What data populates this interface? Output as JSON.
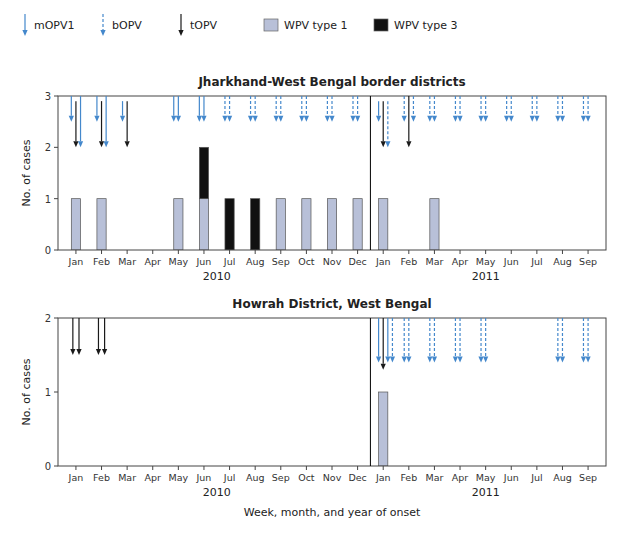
{
  "chart_data": [
    {
      "type": "bar",
      "stacked": true,
      "grid": false,
      "legend": "top",
      "title": "Jharkhand-West Bengal border districts",
      "y_label": "No. of cases",
      "categories": [
        "Jan",
        "Feb",
        "Mar",
        "Apr",
        "May",
        "Jun",
        "Jul",
        "Aug",
        "Sep",
        "Oct",
        "Nov",
        "Dec",
        "Jan",
        "Feb",
        "Mar",
        "Apr",
        "May",
        "Jun",
        "Jul",
        "Aug",
        "Sep"
      ],
      "year_labels": [
        {
          "text": "2010",
          "first": 0,
          "last": 11
        },
        {
          "text": "2011",
          "first": 12,
          "last": 20
        }
      ],
      "series": [
        {
          "name": "WPV type 1",
          "color": "#b8c0d8",
          "values": [
            1,
            1,
            0,
            0,
            1,
            1,
            0,
            0,
            1,
            1,
            1,
            1,
            1,
            0,
            1,
            0,
            0,
            0,
            0,
            0,
            0
          ]
        },
        {
          "name": "WPV type 3",
          "color": "#111111",
          "values": [
            0,
            0,
            0,
            0,
            0,
            1,
            1,
            1,
            0,
            0,
            0,
            0,
            0,
            0,
            0,
            0,
            0,
            0,
            0,
            0,
            0
          ]
        }
      ],
      "ylim": [
        0,
        3
      ],
      "yticks": [
        0,
        1,
        2,
        3
      ],
      "campaigns": [
        {
          "name": "mOPV1",
          "color": "#4488cc",
          "line_style": "solid"
        },
        {
          "name": "bOPV",
          "color": "#4488cc",
          "line_style": "dashed"
        },
        {
          "name": "tOPV",
          "color": "#1a1a1a",
          "line_style": "solid"
        }
      ],
      "arrows": [
        {
          "x": -0.18,
          "y_top": 3.0,
          "y_bot": 2.5,
          "campaign": "mOPV1"
        },
        {
          "x": 0.0,
          "y_top": 2.9,
          "y_bot": 2.0,
          "campaign": "tOPV"
        },
        {
          "x": 0.18,
          "y_top": 3.0,
          "y_bot": 2.0,
          "campaign": "mOPV1"
        },
        {
          "x": 0.82,
          "y_top": 3.0,
          "y_bot": 2.5,
          "campaign": "mOPV1"
        },
        {
          "x": 1.0,
          "y_top": 2.9,
          "y_bot": 2.0,
          "campaign": "tOPV"
        },
        {
          "x": 1.18,
          "y_top": 3.0,
          "y_bot": 2.0,
          "campaign": "mOPV1"
        },
        {
          "x": 1.82,
          "y_top": 2.9,
          "y_bot": 2.5,
          "campaign": "mOPV1"
        },
        {
          "x": 2.0,
          "y_top": 2.9,
          "y_bot": 2.0,
          "campaign": "tOPV"
        },
        {
          "x": 3.82,
          "y_top": 3.0,
          "y_bot": 2.5,
          "campaign": "mOPV1"
        },
        {
          "x": 4.0,
          "y_top": 3.0,
          "y_bot": 2.5,
          "campaign": "mOPV1"
        },
        {
          "x": 4.82,
          "y_top": 3.0,
          "y_bot": 2.5,
          "campaign": "mOPV1"
        },
        {
          "x": 5.0,
          "y_top": 3.0,
          "y_bot": 2.5,
          "campaign": "mOPV1"
        },
        {
          "x": 5.82,
          "y_top": 3.0,
          "y_bot": 2.5,
          "campaign": "bOPV"
        },
        {
          "x": 6.0,
          "y_top": 3.0,
          "y_bot": 2.5,
          "campaign": "bOPV"
        },
        {
          "x": 6.82,
          "y_top": 3.0,
          "y_bot": 2.5,
          "campaign": "bOPV"
        },
        {
          "x": 7.0,
          "y_top": 3.0,
          "y_bot": 2.5,
          "campaign": "bOPV"
        },
        {
          "x": 7.82,
          "y_top": 3.0,
          "y_bot": 2.5,
          "campaign": "bOPV"
        },
        {
          "x": 8.0,
          "y_top": 3.0,
          "y_bot": 2.5,
          "campaign": "bOPV"
        },
        {
          "x": 8.82,
          "y_top": 3.0,
          "y_bot": 2.5,
          "campaign": "bOPV"
        },
        {
          "x": 9.0,
          "y_top": 3.0,
          "y_bot": 2.5,
          "campaign": "bOPV"
        },
        {
          "x": 9.82,
          "y_top": 3.0,
          "y_bot": 2.5,
          "campaign": "bOPV"
        },
        {
          "x": 10.0,
          "y_top": 3.0,
          "y_bot": 2.5,
          "campaign": "bOPV"
        },
        {
          "x": 10.82,
          "y_top": 3.0,
          "y_bot": 2.5,
          "campaign": "bOPV"
        },
        {
          "x": 11.0,
          "y_top": 3.0,
          "y_bot": 2.5,
          "campaign": "bOPV"
        },
        {
          "x": 11.82,
          "y_top": 2.9,
          "y_bot": 2.5,
          "campaign": "mOPV1"
        },
        {
          "x": 12.0,
          "y_top": 2.9,
          "y_bot": 2.0,
          "campaign": "tOPV"
        },
        {
          "x": 12.18,
          "y_top": 2.9,
          "y_bot": 2.0,
          "campaign": "bOPV"
        },
        {
          "x": 12.82,
          "y_top": 3.0,
          "y_bot": 2.5,
          "campaign": "bOPV"
        },
        {
          "x": 13.0,
          "y_top": 3.0,
          "y_bot": 2.0,
          "campaign": "tOPV"
        },
        {
          "x": 13.18,
          "y_top": 3.0,
          "y_bot": 2.5,
          "campaign": "bOPV"
        },
        {
          "x": 13.82,
          "y_top": 3.0,
          "y_bot": 2.5,
          "campaign": "bOPV"
        },
        {
          "x": 14.0,
          "y_top": 3.0,
          "y_bot": 2.5,
          "campaign": "bOPV"
        },
        {
          "x": 14.82,
          "y_top": 3.0,
          "y_bot": 2.5,
          "campaign": "bOPV"
        },
        {
          "x": 15.0,
          "y_top": 3.0,
          "y_bot": 2.5,
          "campaign": "bOPV"
        },
        {
          "x": 15.82,
          "y_top": 3.0,
          "y_bot": 2.5,
          "campaign": "bOPV"
        },
        {
          "x": 16.0,
          "y_top": 3.0,
          "y_bot": 2.5,
          "campaign": "bOPV"
        },
        {
          "x": 16.82,
          "y_top": 3.0,
          "y_bot": 2.5,
          "campaign": "bOPV"
        },
        {
          "x": 17.0,
          "y_top": 3.0,
          "y_bot": 2.5,
          "campaign": "bOPV"
        },
        {
          "x": 17.82,
          "y_top": 3.0,
          "y_bot": 2.5,
          "campaign": "bOPV"
        },
        {
          "x": 18.0,
          "y_top": 3.0,
          "y_bot": 2.5,
          "campaign": "bOPV"
        },
        {
          "x": 18.82,
          "y_top": 3.0,
          "y_bot": 2.5,
          "campaign": "bOPV"
        },
        {
          "x": 19.0,
          "y_top": 3.0,
          "y_bot": 2.5,
          "campaign": "bOPV"
        },
        {
          "x": 19.82,
          "y_top": 3.0,
          "y_bot": 2.5,
          "campaign": "bOPV"
        },
        {
          "x": 20.0,
          "y_top": 3.0,
          "y_bot": 2.5,
          "campaign": "bOPV"
        }
      ]
    },
    {
      "type": "bar",
      "stacked": true,
      "grid": false,
      "title": "Howrah District, West Bengal",
      "x_label": "Week, month, and year of onset",
      "y_label": "No. of cases",
      "categories": [
        "Jan",
        "Feb",
        "Mar",
        "Apr",
        "May",
        "Jun",
        "Jul",
        "Aug",
        "Sep",
        "Oct",
        "Nov",
        "Dec",
        "Jan",
        "Feb",
        "Mar",
        "Apr",
        "May",
        "Jun",
        "Jul",
        "Aug",
        "Sep"
      ],
      "year_labels": [
        {
          "text": "2010",
          "first": 0,
          "last": 11
        },
        {
          "text": "2011",
          "first": 12,
          "last": 20
        }
      ],
      "series": [
        {
          "name": "WPV type 1",
          "color": "#b8c0d8",
          "values": [
            0,
            0,
            0,
            0,
            0,
            0,
            0,
            0,
            0,
            0,
            0,
            0,
            1,
            0,
            0,
            0,
            0,
            0,
            0,
            0,
            0
          ]
        },
        {
          "name": "WPV type 3",
          "color": "#111111",
          "values": [
            0,
            0,
            0,
            0,
            0,
            0,
            0,
            0,
            0,
            0,
            0,
            0,
            0,
            0,
            0,
            0,
            0,
            0,
            0,
            0,
            0
          ]
        }
      ],
      "ylim": [
        0,
        2
      ],
      "yticks": [
        0,
        1,
        2
      ],
      "campaigns": [
        {
          "name": "mOPV1",
          "color": "#4488cc",
          "line_style": "solid"
        },
        {
          "name": "bOPV",
          "color": "#4488cc",
          "line_style": "dashed"
        },
        {
          "name": "tOPV",
          "color": "#1a1a1a",
          "line_style": "solid"
        }
      ],
      "arrows": [
        {
          "x": -0.12,
          "y_top": 2.0,
          "y_bot": 1.5,
          "campaign": "tOPV"
        },
        {
          "x": 0.12,
          "y_top": 2.0,
          "y_bot": 1.5,
          "campaign": "tOPV"
        },
        {
          "x": 0.88,
          "y_top": 2.0,
          "y_bot": 1.5,
          "campaign": "tOPV"
        },
        {
          "x": 1.12,
          "y_top": 2.0,
          "y_bot": 1.5,
          "campaign": "tOPV"
        },
        {
          "x": 11.82,
          "y_top": 2.0,
          "y_bot": 1.4,
          "campaign": "mOPV1"
        },
        {
          "x": 12.0,
          "y_top": 2.0,
          "y_bot": 1.3,
          "campaign": "tOPV"
        },
        {
          "x": 12.18,
          "y_top": 2.0,
          "y_bot": 1.4,
          "campaign": "mOPV1"
        },
        {
          "x": 12.36,
          "y_top": 2.0,
          "y_bot": 1.4,
          "campaign": "bOPV"
        },
        {
          "x": 12.82,
          "y_top": 2.0,
          "y_bot": 1.4,
          "campaign": "bOPV"
        },
        {
          "x": 13.0,
          "y_top": 2.0,
          "y_bot": 1.4,
          "campaign": "bOPV"
        },
        {
          "x": 13.82,
          "y_top": 2.0,
          "y_bot": 1.4,
          "campaign": "bOPV"
        },
        {
          "x": 14.0,
          "y_top": 2.0,
          "y_bot": 1.4,
          "campaign": "bOPV"
        },
        {
          "x": 14.82,
          "y_top": 2.0,
          "y_bot": 1.4,
          "campaign": "bOPV"
        },
        {
          "x": 15.0,
          "y_top": 2.0,
          "y_bot": 1.4,
          "campaign": "bOPV"
        },
        {
          "x": 15.82,
          "y_top": 2.0,
          "y_bot": 1.4,
          "campaign": "bOPV"
        },
        {
          "x": 16.0,
          "y_top": 2.0,
          "y_bot": 1.4,
          "campaign": "bOPV"
        },
        {
          "x": 18.82,
          "y_top": 2.0,
          "y_bot": 1.4,
          "campaign": "bOPV"
        },
        {
          "x": 19.0,
          "y_top": 2.0,
          "y_bot": 1.4,
          "campaign": "bOPV"
        },
        {
          "x": 19.82,
          "y_top": 2.0,
          "y_bot": 1.4,
          "campaign": "bOPV"
        },
        {
          "x": 20.0,
          "y_top": 2.0,
          "y_bot": 1.4,
          "campaign": "bOPV"
        }
      ]
    }
  ]
}
